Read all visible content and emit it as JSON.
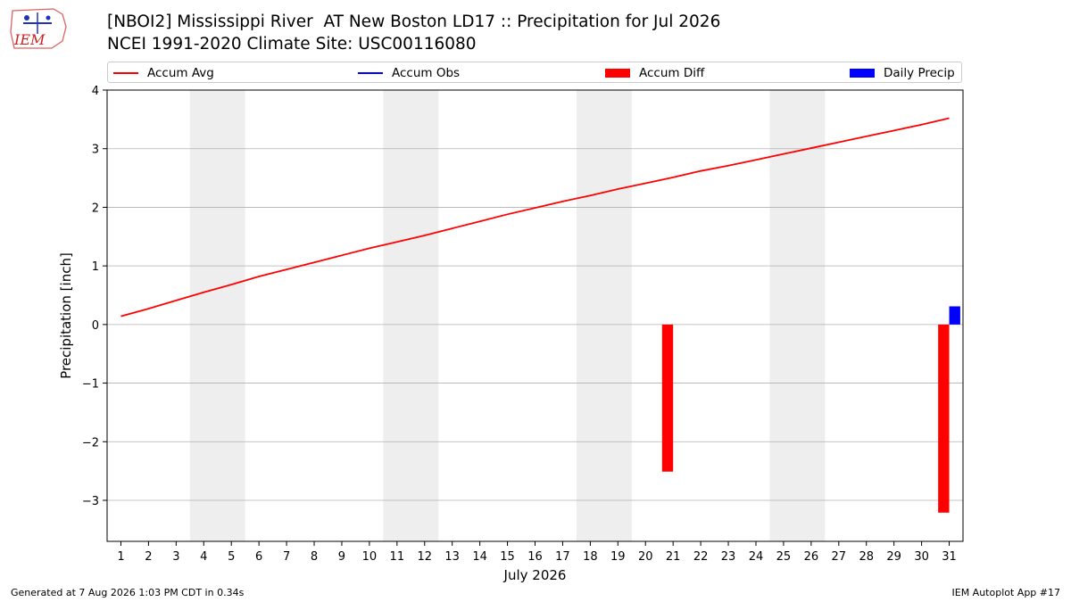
{
  "header": {
    "logo_text": "IEM",
    "title_line1": "[NBOI2] Mississippi River  AT New Boston LD17 :: Precipitation for Jul 2026",
    "title_line2": "NCEI 1991-2020 Climate Site: USC00116080"
  },
  "footer": {
    "generated": "Generated at 7 Aug 2026 1:03 PM CDT in 0.34s",
    "app": "IEM Autoplot App #17"
  },
  "colors": {
    "accum_avg": "#ff0000",
    "accum_obs": "#0000ff",
    "accum_diff": "#ff0000",
    "daily_precip": "#0000ff",
    "weekend_shade": "#eeeeee",
    "grid": "#b0b0b0"
  },
  "chart_data": {
    "type": "line",
    "xlabel": "July 2026",
    "ylabel": "Precipitation [inch]",
    "ylim": [
      -3.7,
      4.0
    ],
    "xlim": [
      0.5,
      31.5
    ],
    "yticks": [
      -3,
      -2,
      -1,
      0,
      1,
      2,
      3,
      4
    ],
    "ytick_labels": [
      "−3",
      "−2",
      "−1",
      "0",
      "1",
      "2",
      "3",
      "4"
    ],
    "xticks": [
      1,
      2,
      3,
      4,
      5,
      6,
      7,
      8,
      9,
      10,
      11,
      12,
      13,
      14,
      15,
      16,
      17,
      18,
      19,
      20,
      21,
      22,
      23,
      24,
      25,
      26,
      27,
      28,
      29,
      30,
      31
    ],
    "grid": "horizontal",
    "legend": {
      "placement": "top",
      "entries": [
        {
          "label": "Accum Avg",
          "kind": "line",
          "color": "#ff0000"
        },
        {
          "label": "Accum Obs",
          "kind": "line",
          "color": "#0000ff"
        },
        {
          "label": "Accum Diff",
          "kind": "bar",
          "color": "#ff0000"
        },
        {
          "label": "Daily Precip",
          "kind": "bar",
          "color": "#0000ff"
        }
      ]
    },
    "weekend_bands": [
      [
        3.5,
        5.5
      ],
      [
        10.5,
        12.5
      ],
      [
        17.5,
        19.5
      ],
      [
        24.5,
        26.5
      ]
    ],
    "series": [
      {
        "name": "Accum Avg",
        "type": "line",
        "color": "#ff0000",
        "x": [
          1,
          2,
          3,
          4,
          5,
          6,
          7,
          8,
          9,
          10,
          11,
          12,
          13,
          14,
          15,
          16,
          17,
          18,
          19,
          20,
          21,
          22,
          23,
          24,
          25,
          26,
          27,
          28,
          29,
          30,
          31
        ],
        "values": [
          0.14,
          0.27,
          0.41,
          0.55,
          0.68,
          0.82,
          0.94,
          1.06,
          1.18,
          1.3,
          1.41,
          1.52,
          1.64,
          1.76,
          1.88,
          1.99,
          2.1,
          2.2,
          2.31,
          2.41,
          2.51,
          2.62,
          2.71,
          2.81,
          2.91,
          3.01,
          3.11,
          3.21,
          3.31,
          3.41,
          3.52
        ]
      },
      {
        "name": "Accum Diff",
        "type": "bar",
        "color": "#ff0000",
        "x": [
          21,
          31
        ],
        "values": [
          -2.51,
          -3.21
        ]
      },
      {
        "name": "Daily Precip",
        "type": "bar",
        "color": "#0000ff",
        "x": [
          31
        ],
        "values": [
          0.31
        ]
      }
    ]
  }
}
